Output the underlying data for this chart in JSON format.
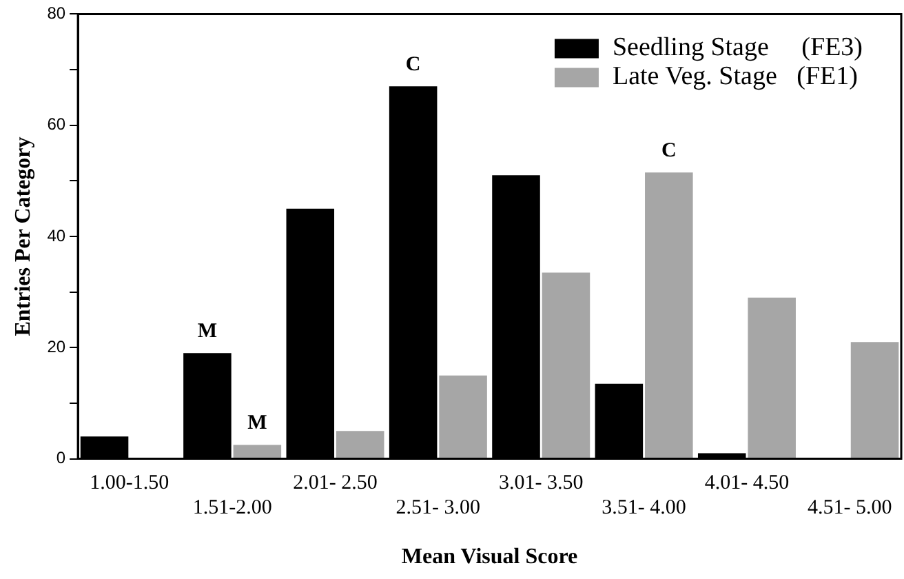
{
  "chart_data": {
    "type": "bar",
    "xlabel": "Mean Visual Score",
    "ylabel": "Entries Per Category",
    "categories": [
      "1.00-1.50",
      "1.51-2.00",
      "2.01- 2.50",
      "2.51- 3.00",
      "3.01- 3.50",
      "3.51- 4.00",
      "4.01- 4.50",
      "4.51- 5.00"
    ],
    "series": [
      {
        "name": "Seedling Stage     (FE3)",
        "color": "#000000",
        "values": [
          4,
          19,
          45,
          67,
          51,
          13.5,
          1,
          0
        ]
      },
      {
        "name": "Late Veg. Stage   (FE1)",
        "color": "#a6a6a6",
        "values": [
          0,
          2.5,
          5,
          15,
          33.5,
          51.5,
          29,
          21
        ]
      }
    ],
    "ylim": [
      0,
      80
    ],
    "yticks": [
      0,
      {
        "value": 10,
        "label": null
      },
      20,
      {
        "value": 30,
        "label": null
      },
      40,
      {
        "value": 50,
        "label": null
      },
      60,
      {
        "value": 70,
        "label": null
      },
      80
    ],
    "grid": false,
    "legend": "top right",
    "annotations": [
      {
        "text": "M",
        "x": "1.51-2.00",
        "y": 19
      },
      {
        "text": "M",
        "x": "1.51-2.00",
        "y": 2.5
      },
      {
        "text": "C",
        "x": "2.51- 3.00",
        "y": 67
      },
      {
        "text": "C",
        "x": "3.51- 4.00",
        "y": 51.5
      }
    ]
  }
}
